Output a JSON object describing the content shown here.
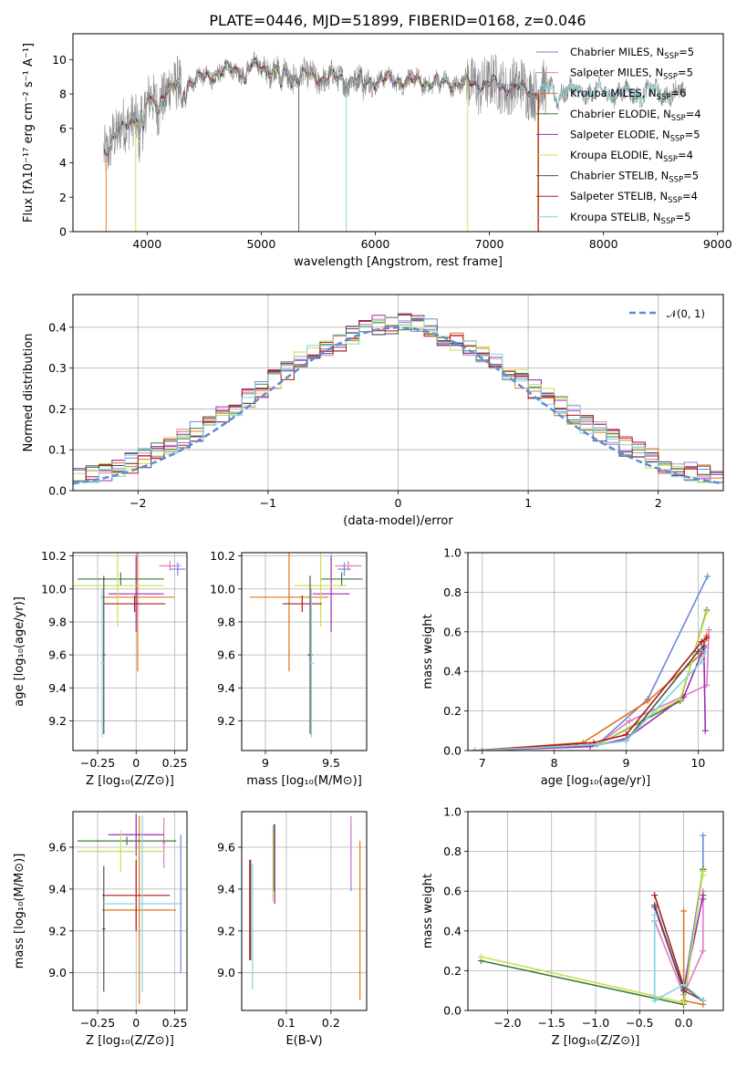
{
  "title": "PLATE=0446, MJD=51899, FIBERID=0168, z=0.046",
  "colors": {
    "Chabrier MILES": "#6b8ad6",
    "Salpeter MILES": "#e07cc0",
    "Kroupa MILES": "#e0761e",
    "Chabrier ELODIE": "#3d7a3d",
    "Salpeter ELODIE": "#9a2cb4",
    "Kroupa ELODIE": "#c9e04a",
    "Chabrier STELIB": "#505050",
    "Salpeter STELIB": "#b01818",
    "Kroupa STELIB": "#7fd6dc",
    "data": "#888888",
    "normal": "#5b8bd8"
  },
  "chart_data": [
    {
      "id": "spectrum",
      "type": "line",
      "xlabel": "wavelength [Angstrom, rest frame]",
      "ylabel": "Flux [fλ10⁻¹⁷ erg cm⁻² s⁻¹ A⁻¹]",
      "xlim": [
        3350,
        9050
      ],
      "ylim": [
        0,
        11.5
      ],
      "xticks": [
        4000,
        5000,
        6000,
        7000,
        8000,
        9000
      ],
      "yticks": [
        0,
        2,
        4,
        6,
        8,
        10
      ],
      "legend_position": "right",
      "legend": [
        {
          "name": "Chabrier MILES",
          "nssp": "5"
        },
        {
          "name": "Salpeter MILES",
          "nssp": "5"
        },
        {
          "name": "Kroupa MILES",
          "nssp": "6"
        },
        {
          "name": "Chabrier ELODIE",
          "nssp": "4"
        },
        {
          "name": "Salpeter ELODIE",
          "nssp": "5"
        },
        {
          "name": "Kroupa ELODIE",
          "nssp": "4"
        },
        {
          "name": "Chabrier STELIB",
          "nssp": "5"
        },
        {
          "name": "Salpeter STELIB",
          "nssp": "4"
        },
        {
          "name": "Kroupa STELIB",
          "nssp": "5"
        }
      ],
      "continuum": {
        "x": [
          3620,
          3700,
          3800,
          3900,
          4000,
          4100,
          4200,
          4300,
          4400,
          4500,
          4600,
          4700,
          4800,
          4900,
          5000,
          5200,
          5400,
          5600,
          5800,
          6000,
          6200,
          6400,
          6600,
          6800,
          7000,
          7200,
          7400,
          7500,
          7800,
          8000,
          8200,
          8400,
          8700
        ],
        "y": [
          4.6,
          5.5,
          6.0,
          6.8,
          7.4,
          7.8,
          8.3,
          8.5,
          8.8,
          8.9,
          9.2,
          9.4,
          9.4,
          9.5,
          9.6,
          9.2,
          9.0,
          8.9,
          8.8,
          8.8,
          8.8,
          8.7,
          8.7,
          8.6,
          8.6,
          8.4,
          8.2,
          8.2,
          8.1,
          8.1,
          8.0,
          8.1,
          8.0
        ]
      }
    },
    {
      "id": "residuals",
      "type": "histogram",
      "xlabel": "(data-model)/error",
      "ylabel": "Normed distribution",
      "xlim": [
        -2.5,
        2.5
      ],
      "ylim": [
        0,
        0.48
      ],
      "xticks": [
        -2,
        -1,
        0,
        1,
        2
      ],
      "yticks": [
        0.0,
        0.1,
        0.2,
        0.3,
        0.4
      ],
      "grid": true,
      "legend_position": "top-right",
      "legend_label": "𝒩(0, 1)"
    },
    {
      "id": "age-Z",
      "type": "errorbar",
      "xlabel": "Z [log₁₀(Z/Z⊙)]",
      "ylabel": "age  [log₁₀(age/yr)]",
      "xlim": [
        -0.41,
        0.33
      ],
      "ylim": [
        9.02,
        10.22
      ],
      "xticks": [
        -0.25,
        0.0,
        0.25
      ],
      "yticks": [
        9.2,
        9.4,
        9.6,
        9.8,
        10.0,
        10.2
      ],
      "grid": true,
      "points": [
        {
          "model": "Chabrier MILES",
          "x": 0.27,
          "y": 10.12,
          "xerr": 0.05,
          "yerr": 0.04
        },
        {
          "model": "Salpeter MILES",
          "x": 0.22,
          "y": 10.14,
          "xerr": 0.07,
          "yerr": 0.03
        },
        {
          "model": "Kroupa MILES",
          "x": 0.01,
          "y": 9.95,
          "xerr": 0.24,
          "yerr": 0.45
        },
        {
          "model": "Chabrier ELODIE",
          "x": -0.1,
          "y": 10.06,
          "xerr": 0.28,
          "yerr": 0.04
        },
        {
          "model": "Salpeter ELODIE",
          "x": 0.0,
          "y": 9.97,
          "xerr": 0.18,
          "yerr": 0.23
        },
        {
          "model": "Kroupa ELODIE",
          "x": -0.12,
          "y": 10.02,
          "xerr": 0.3,
          "yerr": 0.25
        },
        {
          "model": "Chabrier STELIB",
          "x": -0.21,
          "y": 9.6,
          "xerr": 0.01,
          "yerr": 0.48
        },
        {
          "model": "Salpeter STELIB",
          "x": -0.01,
          "y": 9.91,
          "xerr": 0.2,
          "yerr": 0.05
        },
        {
          "model": "Kroupa STELIB",
          "x": -0.22,
          "y": 9.55,
          "xerr": 0.01,
          "yerr": 0.45
        }
      ]
    },
    {
      "id": "age-mass",
      "type": "errorbar",
      "xlabel": "mass [log₁₀(M/M⊙)]",
      "ylabel": "",
      "xlim": [
        8.82,
        9.77
      ],
      "ylim": [
        9.02,
        10.22
      ],
      "xticks": [
        9.0,
        9.5
      ],
      "yticks": [
        9.2,
        9.4,
        9.6,
        9.8,
        10.0,
        10.2
      ],
      "grid": true,
      "points": [
        {
          "model": "Chabrier MILES",
          "x": 9.6,
          "y": 10.12,
          "xerr": 0.05,
          "yerr": 0.04
        },
        {
          "model": "Salpeter MILES",
          "x": 9.63,
          "y": 10.14,
          "xerr": 0.1,
          "yerr": 0.03
        },
        {
          "model": "Kroupa MILES",
          "x": 9.18,
          "y": 9.95,
          "xerr": 0.3,
          "yerr": 0.45
        },
        {
          "model": "Chabrier ELODIE",
          "x": 9.58,
          "y": 10.06,
          "xerr": 0.16,
          "yerr": 0.04
        },
        {
          "model": "Salpeter ELODIE",
          "x": 9.5,
          "y": 9.97,
          "xerr": 0.14,
          "yerr": 0.23
        },
        {
          "model": "Kroupa ELODIE",
          "x": 9.42,
          "y": 10.02,
          "xerr": 0.2,
          "yerr": 0.25
        },
        {
          "model": "Chabrier STELIB",
          "x": 9.34,
          "y": 9.6,
          "xerr": 0.02,
          "yerr": 0.48
        },
        {
          "model": "Salpeter STELIB",
          "x": 9.28,
          "y": 9.91,
          "xerr": 0.15,
          "yerr": 0.05
        },
        {
          "model": "Kroupa STELIB",
          "x": 9.35,
          "y": 9.55,
          "xerr": 0.02,
          "yerr": 0.45
        }
      ]
    },
    {
      "id": "weight-age",
      "type": "line",
      "xlabel": "age  [log₁₀(age/yr)]",
      "ylabel": "mass weight",
      "xlim": [
        6.8,
        10.35
      ],
      "ylim": [
        0,
        1.0
      ],
      "xticks": [
        7,
        8,
        9,
        10
      ],
      "yticks": [
        0.0,
        0.2,
        0.4,
        0.6,
        0.8,
        1.0
      ],
      "grid": true,
      "series": [
        {
          "model": "Chabrier MILES",
          "x": [
            6.9,
            8.6,
            9.3,
            10.13
          ],
          "y": [
            0.0,
            0.03,
            0.26,
            0.88
          ]
        },
        {
          "model": "Salpeter MILES",
          "x": [
            7.0,
            8.6,
            9.05,
            10.12,
            10.15
          ],
          "y": [
            0.0,
            0.03,
            0.15,
            0.33,
            0.61
          ]
        },
        {
          "model": "Kroupa MILES",
          "x": [
            6.9,
            8.4,
            9.3,
            10.05,
            10.12
          ],
          "y": [
            0.0,
            0.04,
            0.25,
            0.49,
            0.58
          ]
        },
        {
          "model": "Chabrier ELODIE",
          "x": [
            6.9,
            8.6,
            9.75,
            10.12
          ],
          "y": [
            0.0,
            0.03,
            0.25,
            0.71
          ]
        },
        {
          "model": "Salpeter ELODIE",
          "x": [
            6.9,
            8.5,
            9.0,
            9.8,
            10.08,
            10.1
          ],
          "y": [
            0.0,
            0.02,
            0.06,
            0.27,
            0.52,
            0.1
          ]
        },
        {
          "model": "Kroupa ELODIE",
          "x": [
            6.9,
            8.6,
            9.75,
            10.12
          ],
          "y": [
            0.0,
            0.03,
            0.26,
            0.7
          ]
        },
        {
          "model": "Chabrier STELIB",
          "x": [
            6.9,
            8.6,
            9.0,
            10.0,
            10.08
          ],
          "y": [
            0.0,
            0.03,
            0.05,
            0.5,
            0.53
          ]
        },
        {
          "model": "Salpeter STELIB",
          "x": [
            6.9,
            8.55,
            9.0,
            10.05,
            10.12
          ],
          "y": [
            0.0,
            0.04,
            0.08,
            0.55,
            0.57
          ]
        },
        {
          "model": "Kroupa STELIB",
          "x": [
            6.9,
            8.6,
            9.0,
            10.05,
            10.1
          ],
          "y": [
            0.0,
            0.03,
            0.05,
            0.45,
            0.5
          ]
        }
      ]
    },
    {
      "id": "mass-Z",
      "type": "errorbar",
      "xlabel": "Z [log₁₀(Z/Z⊙)]",
      "ylabel": "mass [log₁₀(M/M⊙)]",
      "xlim": [
        -0.41,
        0.33
      ],
      "ylim": [
        8.82,
        9.77
      ],
      "xticks": [
        -0.25,
        0.0,
        0.25
      ],
      "yticks": [
        9.0,
        9.2,
        9.4,
        9.6
      ],
      "grid": true,
      "points": [
        {
          "model": "Chabrier MILES",
          "x": 0.29,
          "y": 9.33,
          "xerr": 0.01,
          "yerr": 0.33
        },
        {
          "model": "Salpeter MILES",
          "x": 0.18,
          "y": 9.62,
          "xerr": 0.01,
          "yerr": 0.12
        },
        {
          "model": "Kroupa MILES",
          "x": 0.02,
          "y": 9.3,
          "xerr": 0.24,
          "yerr": 0.45
        },
        {
          "model": "Chabrier ELODIE",
          "x": -0.06,
          "y": 9.63,
          "xerr": 0.32,
          "yerr": 0.02
        },
        {
          "model": "Salpeter ELODIE",
          "x": 0.0,
          "y": 9.66,
          "xerr": 0.18,
          "yerr": 0.1
        },
        {
          "model": "Kroupa ELODIE",
          "x": -0.1,
          "y": 9.58,
          "xerr": 0.28,
          "yerr": 0.1
        },
        {
          "model": "Chabrier STELIB",
          "x": -0.21,
          "y": 9.21,
          "xerr": 0.01,
          "yerr": 0.3
        },
        {
          "model": "Salpeter STELIB",
          "x": 0.0,
          "y": 9.37,
          "xerr": 0.22,
          "yerr": 0.17
        },
        {
          "model": "Kroupa STELIB",
          "x": 0.04,
          "y": 9.33,
          "xerr": 0.26,
          "yerr": 0.42
        }
      ]
    },
    {
      "id": "mass-EBV",
      "type": "errorbar",
      "xlabel": "E(B-V)",
      "ylabel": "",
      "xlim": [
        0.0,
        0.28
      ],
      "ylim": [
        8.82,
        9.77
      ],
      "xticks": [
        0.1,
        0.2
      ],
      "yticks": [
        9.0,
        9.2,
        9.4,
        9.6
      ],
      "grid": true,
      "points": [
        {
          "model": "Chabrier MILES",
          "x": 0.245,
          "y": 9.55,
          "xerr": 0.0,
          "yerr": 0.16
        },
        {
          "model": "Salpeter MILES",
          "x": 0.245,
          "y": 9.58,
          "xerr": 0.0,
          "yerr": 0.17
        },
        {
          "model": "Kroupa MILES",
          "x": 0.265,
          "y": 9.25,
          "xerr": 0.0,
          "yerr": 0.38
        },
        {
          "model": "Chabrier ELODIE",
          "x": 0.072,
          "y": 9.55,
          "xerr": 0.0,
          "yerr": 0.16
        },
        {
          "model": "Salpeter ELODIE",
          "x": 0.074,
          "y": 9.52,
          "xerr": 0.0,
          "yerr": 0.19
        },
        {
          "model": "Kroupa ELODIE",
          "x": 0.07,
          "y": 9.52,
          "xerr": 0.0,
          "yerr": 0.18
        },
        {
          "model": "Chabrier STELIB",
          "x": 0.02,
          "y": 9.3,
          "xerr": 0.0,
          "yerr": 0.24
        },
        {
          "model": "Salpeter STELIB",
          "x": 0.018,
          "y": 9.3,
          "xerr": 0.0,
          "yerr": 0.24
        },
        {
          "model": "Kroupa STELIB",
          "x": 0.024,
          "y": 9.22,
          "xerr": 0.0,
          "yerr": 0.3
        }
      ]
    },
    {
      "id": "weight-Z",
      "type": "line",
      "xlabel": "Z [log₁₀(Z/Z⊙)]",
      "ylabel": "mass weight",
      "xlim": [
        -2.45,
        0.45
      ],
      "ylim": [
        0,
        1.0
      ],
      "xticks": [
        -2.0,
        -1.5,
        -1.0,
        -0.5,
        0.0
      ],
      "yticks": [
        0.0,
        0.2,
        0.4,
        0.6,
        0.8,
        1.0
      ],
      "grid": true,
      "series": [
        {
          "model": "Chabrier MILES",
          "x": [
            -0.33,
            0.0,
            0.22,
            0.22
          ],
          "y": [
            0.52,
            0.1,
            0.71,
            0.88
          ]
        },
        {
          "model": "Salpeter MILES",
          "x": [
            -0.33,
            0.0,
            0.22,
            0.22
          ],
          "y": [
            0.45,
            0.08,
            0.3,
            0.6
          ]
        },
        {
          "model": "Kroupa MILES",
          "x": [
            0.0,
            0.0,
            0.22,
            0.22
          ],
          "y": [
            0.5,
            0.05,
            0.03,
            0.05
          ]
        },
        {
          "model": "Chabrier ELODIE",
          "x": [
            -2.3,
            0.0,
            0.22,
            0.22
          ],
          "y": [
            0.25,
            0.03,
            0.71,
            0.7
          ]
        },
        {
          "model": "Salpeter ELODIE",
          "x": [
            -0.33,
            0.0,
            0.22,
            0.22
          ],
          "y": [
            0.52,
            0.1,
            0.58,
            0.56
          ]
        },
        {
          "model": "Kroupa ELODIE",
          "x": [
            -2.3,
            0.0,
            0.22,
            0.22
          ],
          "y": [
            0.27,
            0.04,
            0.7,
            0.68
          ]
        },
        {
          "model": "Chabrier STELIB",
          "x": [
            -0.33,
            0.0,
            0.22
          ],
          "y": [
            0.53,
            0.1,
            0.05
          ]
        },
        {
          "model": "Salpeter STELIB",
          "x": [
            -0.33,
            0.0,
            0.22
          ],
          "y": [
            0.58,
            0.12,
            0.05
          ]
        },
        {
          "model": "Kroupa STELIB",
          "x": [
            -0.33,
            -0.33,
            0.0,
            0.22
          ],
          "y": [
            0.48,
            0.05,
            0.13,
            0.05
          ]
        }
      ]
    }
  ]
}
